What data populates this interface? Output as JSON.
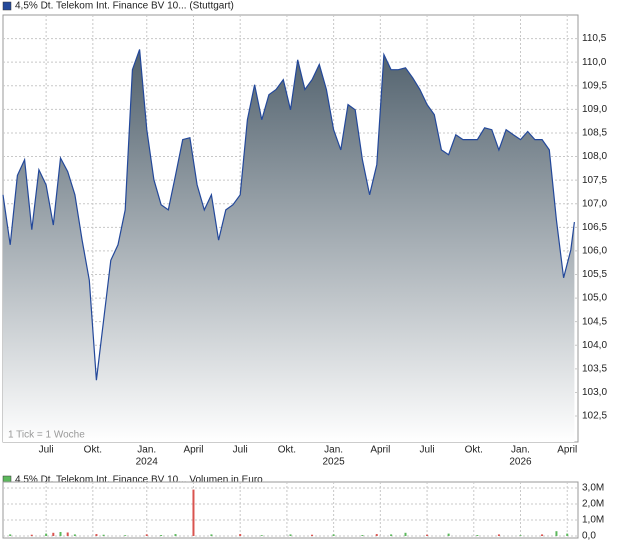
{
  "chart_data": [
    {
      "type": "area",
      "legend": "4,5% Dt. Telekom Int. Finance BV 10... (Stuttgart)",
      "annotation": "1 Tick = 1 Woche",
      "color": "#23489a",
      "legend_color": "#23489a",
      "grid": true,
      "x": [
        0,
        2,
        4,
        6,
        8,
        10,
        12,
        14,
        16,
        18,
        20,
        22,
        24,
        26,
        28,
        30,
        32,
        34,
        36,
        38,
        40,
        42,
        44,
        46,
        48,
        50,
        52,
        54,
        56,
        58,
        60,
        62,
        64,
        66,
        68,
        70,
        72,
        74,
        76,
        78,
        80,
        82,
        84,
        86,
        88,
        90,
        92,
        94,
        96,
        98,
        100,
        102,
        104,
        106,
        108,
        110,
        112,
        114,
        116,
        118,
        120,
        122,
        124,
        126,
        128,
        130,
        132,
        134,
        136,
        138,
        140,
        142,
        144,
        146,
        148,
        150,
        152,
        154,
        156,
        158,
        159
      ],
      "values": [
        107.19,
        106.13,
        107.6,
        107.93,
        106.45,
        107.72,
        107.4,
        106.55,
        107.97,
        107.68,
        107.19,
        106.23,
        105.38,
        103.26,
        104.53,
        105.8,
        106.13,
        106.87,
        109.84,
        110.27,
        108.57,
        107.51,
        106.98,
        106.87,
        107.6,
        108.36,
        108.4,
        107.4,
        106.87,
        107.19,
        106.23,
        106.87,
        106.98,
        107.19,
        108.78,
        109.52,
        108.78,
        109.31,
        109.42,
        109.63,
        108.99,
        110.05,
        109.42,
        109.63,
        109.95,
        109.42,
        108.57,
        108.14,
        109.1,
        108.99,
        107.93,
        107.19,
        107.83,
        110.16,
        109.84,
        109.84,
        109.88,
        109.67,
        109.42,
        109.1,
        108.89,
        108.14,
        108.04,
        108.46,
        108.36,
        108.36,
        108.36,
        108.61,
        108.57,
        108.14,
        108.57,
        108.46,
        108.36,
        108.53,
        108.36,
        108.36,
        108.14,
        106.66,
        105.43,
        106.02,
        106.61
      ],
      "xlim": [
        0,
        160
      ],
      "xticks": [
        {
          "value": 12,
          "label": "Juli"
        },
        {
          "value": 25,
          "label": "Okt."
        },
        {
          "value": 40,
          "label": "Jan."
        },
        {
          "value": 53,
          "label": "April"
        },
        {
          "value": 66,
          "label": "Juli"
        },
        {
          "value": 79,
          "label": "Okt."
        },
        {
          "value": 92,
          "label": "Jan."
        },
        {
          "value": 105,
          "label": "April"
        },
        {
          "value": 118,
          "label": "Juli"
        },
        {
          "value": 131,
          "label": "Okt."
        },
        {
          "value": 144,
          "label": "Jan."
        },
        {
          "value": 157,
          "label": "April"
        }
      ],
      "year_labels": [
        {
          "value": 40,
          "label": "2024"
        },
        {
          "value": 92,
          "label": "2025"
        },
        {
          "value": 144,
          "label": "2026"
        }
      ],
      "ylim": [
        101.95,
        111.0
      ],
      "yticks": [
        {
          "value": 102.5,
          "label": "102,5"
        },
        {
          "value": 103,
          "label": "103,0"
        },
        {
          "value": 103.5,
          "label": "103,5"
        },
        {
          "value": 104,
          "label": "104,0"
        },
        {
          "value": 104.5,
          "label": "104,5"
        },
        {
          "value": 105,
          "label": "105,0"
        },
        {
          "value": 105.5,
          "label": "105,5"
        },
        {
          "value": 106,
          "label": "106,0"
        },
        {
          "value": 106.5,
          "label": "106,5"
        },
        {
          "value": 107,
          "label": "107,0"
        },
        {
          "value": 107.5,
          "label": "107,5"
        },
        {
          "value": 108,
          "label": "108,0"
        },
        {
          "value": 108.5,
          "label": "108,5"
        },
        {
          "value": 109,
          "label": "109,0"
        },
        {
          "value": 109.5,
          "label": "109,5"
        },
        {
          "value": 110,
          "label": "110,0"
        },
        {
          "value": 110.5,
          "label": "110,5"
        }
      ]
    },
    {
      "type": "bar",
      "legend": "4,5% Dt. Telekom Int. Finance BV 10... Volumen in Euro",
      "legend_color": "#5cb85c",
      "grid": true,
      "x": [
        2,
        8,
        12,
        14,
        16,
        18,
        20,
        26,
        28,
        34,
        40,
        44,
        48,
        53,
        58,
        66,
        72,
        80,
        86,
        92,
        100,
        104,
        108,
        112,
        118,
        124,
        132,
        138,
        144,
        150,
        154,
        157
      ],
      "values": [
        100000,
        80000,
        150000,
        200000,
        250000,
        220000,
        100000,
        120000,
        80000,
        50000,
        100000,
        60000,
        120000,
        2900000,
        100000,
        120000,
        50000,
        100000,
        80000,
        100000,
        60000,
        120000,
        100000,
        200000,
        80000,
        150000,
        60000,
        100000,
        50000,
        100000,
        300000,
        150000
      ],
      "colors": [
        "#5cb85c",
        "#d9534f",
        "#5cb85c",
        "#d9534f",
        "#5cb85c",
        "#d9534f",
        "#5cb85c",
        "#d9534f",
        "#5cb85c",
        "#5cb85c",
        "#d9534f",
        "#5cb85c",
        "#5cb85c",
        "#d9534f",
        "#5cb85c",
        "#d9534f",
        "#5cb85c",
        "#5cb85c",
        "#d9534f",
        "#5cb85c",
        "#5cb85c",
        "#d9534f",
        "#5cb85c",
        "#5cb85c",
        "#d9534f",
        "#5cb85c",
        "#5cb85c",
        "#d9534f",
        "#5cb85c",
        "#d9534f",
        "#5cb85c",
        "#5cb85c"
      ],
      "xlim": [
        0,
        160
      ],
      "ylim": [
        -125000,
        3375000
      ],
      "yticks": [
        {
          "value": 0,
          "label": "0,0"
        },
        {
          "value": 1000000,
          "label": "1,0M"
        },
        {
          "value": 2000000,
          "label": "2,0M"
        },
        {
          "value": 3000000,
          "label": "3,0M"
        }
      ]
    }
  ]
}
